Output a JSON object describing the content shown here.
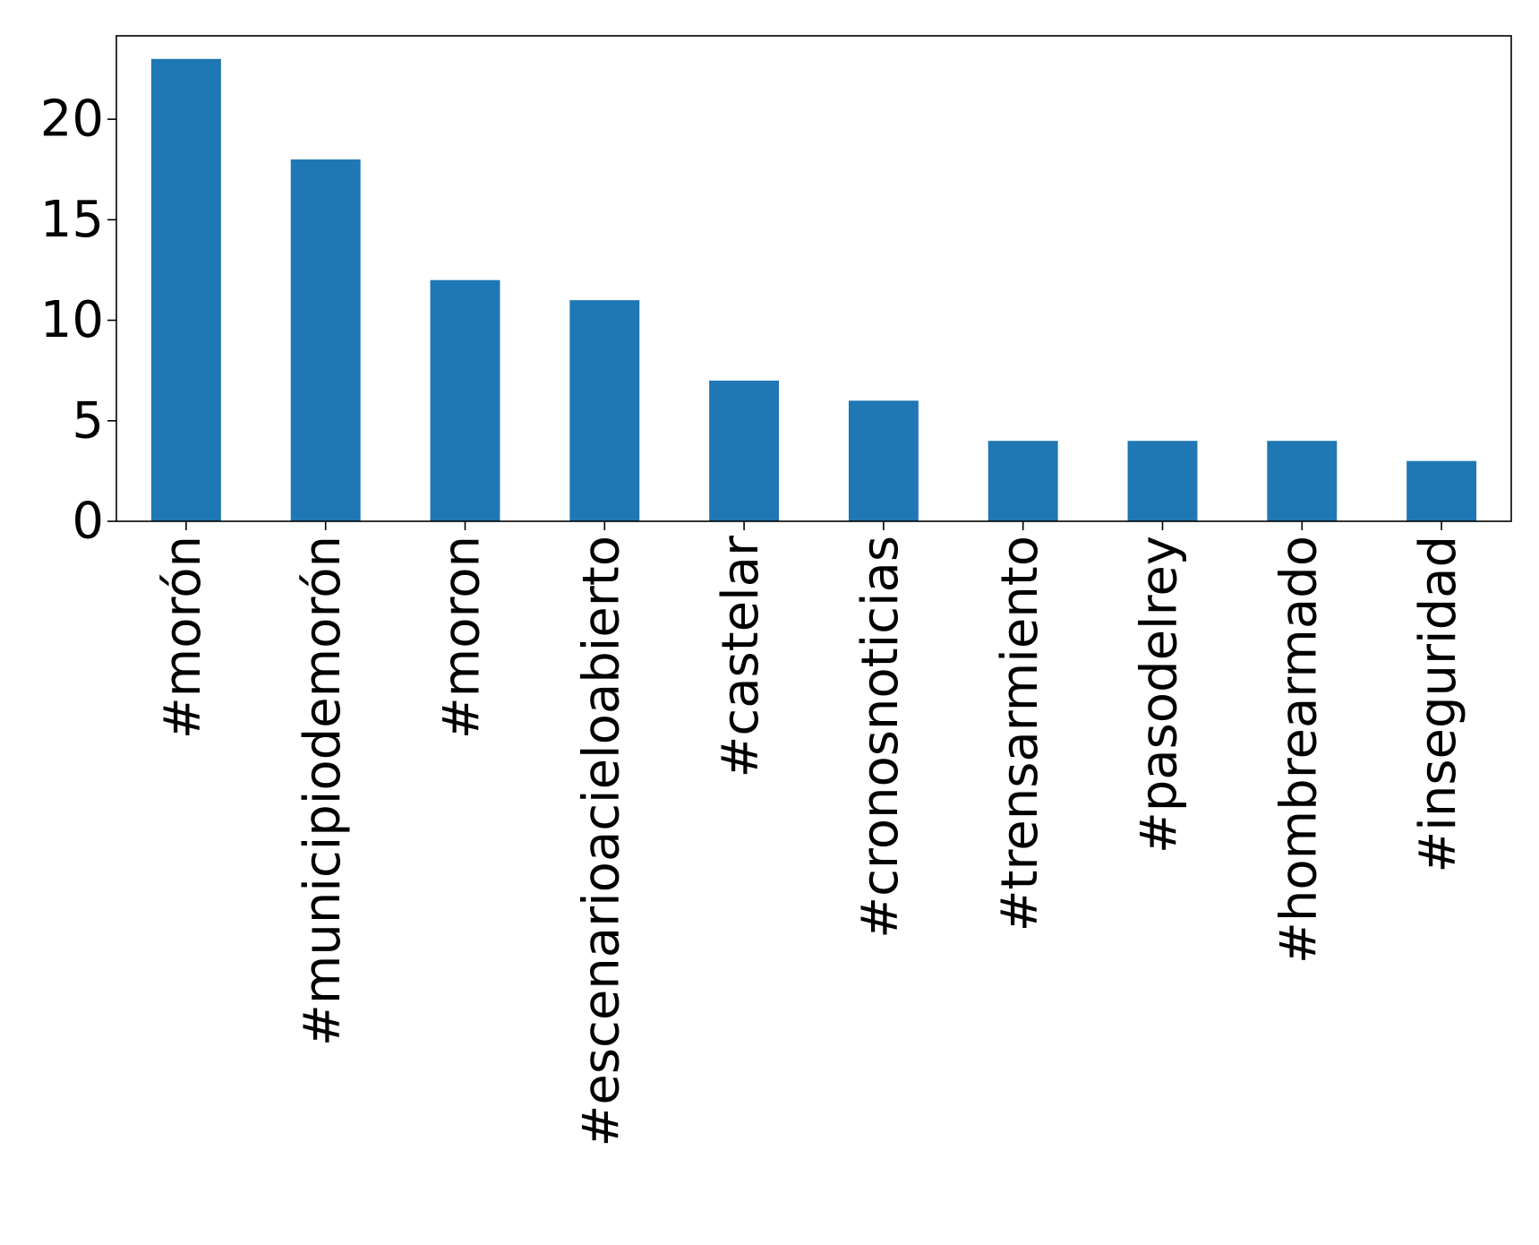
{
  "chart_data": {
    "type": "bar",
    "title": "",
    "xlabel": "",
    "ylabel": "",
    "categories": [
      "#morón",
      "#municipiodemorón",
      "#moron",
      "#escenarioacieloabierto",
      "#castelar",
      "#cronosnoticias",
      "#trensarmiento",
      "#pasodelrey",
      "#hombrearmado",
      "#inseguridad"
    ],
    "values": [
      23,
      18,
      12,
      11,
      7,
      6,
      4,
      4,
      4,
      3
    ],
    "ylim": [
      0,
      24.15
    ],
    "yticks": [
      0,
      5,
      10,
      15,
      20
    ],
    "bar_color": "#1f77b4",
    "x_tick_rotation": "vertical",
    "grid": false,
    "legend": "none"
  }
}
